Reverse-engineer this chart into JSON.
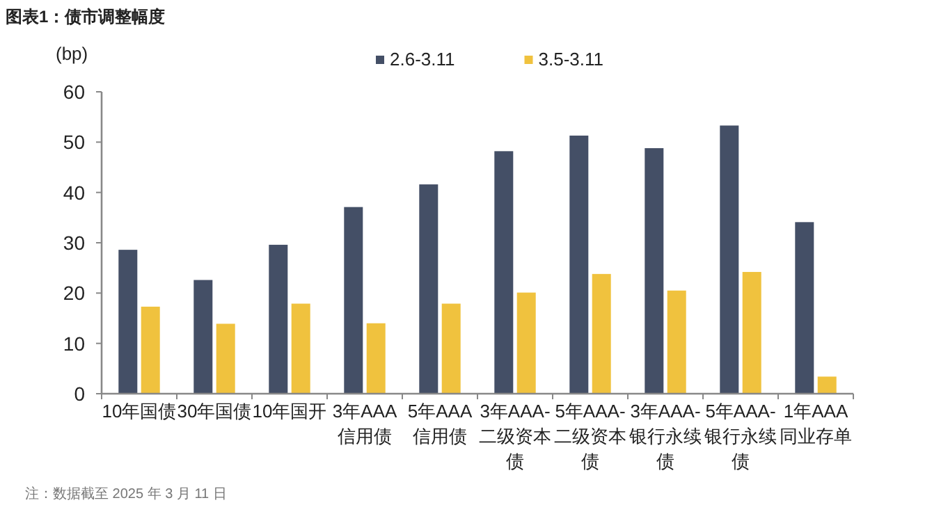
{
  "chart_data": {
    "type": "bar",
    "title": "图表1：债市调整幅度",
    "ylabel": "(bp)",
    "categories": [
      "10年国债",
      "30年国债",
      "10年国开",
      "3年AAA信用债",
      "5年AAA信用债",
      "3年AAA-二级资本债",
      "5年AAA-二级资本债",
      "3年AAA-银行永续债",
      "5年AAA-银行永续债",
      "1年AAA同业存单"
    ],
    "series": [
      {
        "name": "2.6-3.11",
        "color": "#444f66",
        "values": [
          28.6,
          22.6,
          29.6,
          37.1,
          41.6,
          48.2,
          51.3,
          48.8,
          53.3,
          34.1
        ]
      },
      {
        "name": "3.5-3.11",
        "color": "#f0c23e",
        "values": [
          17.3,
          13.9,
          17.9,
          14.0,
          17.9,
          20.1,
          23.8,
          20.5,
          24.2,
          3.4
        ]
      }
    ],
    "ylim": [
      0,
      60
    ],
    "yticks": [
      0,
      10,
      20,
      30,
      40,
      50,
      60
    ],
    "grid": false,
    "legend": "top",
    "annotations": [
      "注：数据截至 2025 年 3 月 11 日"
    ]
  }
}
